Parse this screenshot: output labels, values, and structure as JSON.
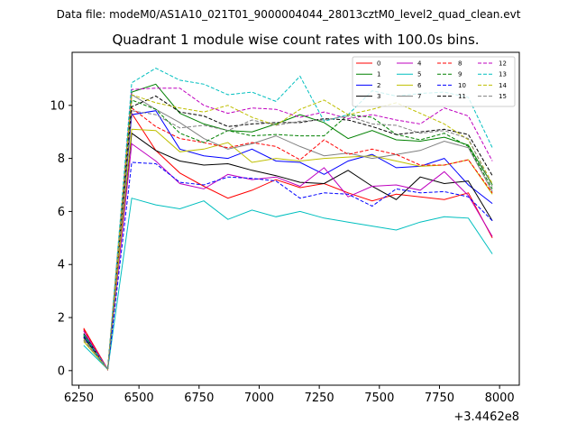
{
  "suptitle": "Data file: modeM0/AS1A10_021T01_9000004044_28013cztM0_level2_quad_clean.evt",
  "chart_data": {
    "type": "line",
    "title": "Quadrant 1 module wise count rates with 100.0s bins.",
    "xlabel": "",
    "ylabel": "",
    "offset_label": "+3.4462e8",
    "xlim": [
      6222,
      8082
    ],
    "ylim": [
      -0.55,
      12.0
    ],
    "x_ticks": [
      6250,
      6500,
      6750,
      7000,
      7250,
      7500,
      7750,
      8000
    ],
    "x_tick_labels": [
      "6250",
      "6500",
      "6750",
      "7000",
      "7250",
      "7500",
      "7750",
      "8000"
    ],
    "y_ticks": [
      0,
      2,
      4,
      6,
      8,
      10
    ],
    "y_tick_labels": [
      "0",
      "2",
      "4",
      "6",
      "8",
      "10"
    ],
    "grid": false,
    "legend_position": "top-right",
    "x": [
      6270,
      6370,
      6470,
      6570,
      6670,
      6770,
      6870,
      6970,
      7070,
      7170,
      7270,
      7370,
      7470,
      7570,
      7670,
      7770,
      7870,
      7970
    ],
    "series": [
      {
        "name": "0",
        "color": "#ff0000",
        "dash": "solid",
        "values": [
          1.6,
          0.05,
          9.7,
          8.3,
          7.45,
          6.95,
          6.5,
          6.8,
          7.2,
          6.9,
          7.05,
          6.7,
          6.4,
          6.65,
          6.55,
          6.45,
          6.7,
          5.0
        ]
      },
      {
        "name": "1",
        "color": "#008000",
        "dash": "solid",
        "values": [
          1.3,
          0.05,
          10.5,
          10.8,
          9.7,
          9.3,
          9.05,
          9.0,
          9.3,
          9.65,
          9.35,
          8.75,
          9.05,
          8.7,
          8.65,
          8.8,
          8.5,
          7.0
        ]
      },
      {
        "name": "2",
        "color": "#0000ff",
        "dash": "solid",
        "values": [
          1.25,
          0.05,
          9.65,
          9.8,
          8.35,
          8.1,
          8.0,
          8.35,
          7.9,
          7.85,
          7.4,
          7.9,
          8.15,
          7.65,
          7.7,
          8.0,
          7.0,
          6.3
        ]
      },
      {
        "name": "3",
        "color": "#000000",
        "dash": "solid",
        "values": [
          1.4,
          0.05,
          8.95,
          8.3,
          7.9,
          7.75,
          7.8,
          7.55,
          7.35,
          7.1,
          7.05,
          7.55,
          6.95,
          6.45,
          7.3,
          7.05,
          7.15,
          5.65
        ]
      },
      {
        "name": "4",
        "color": "#bf00bf",
        "dash": "solid",
        "values": [
          1.5,
          0.05,
          8.55,
          7.9,
          7.05,
          6.85,
          7.4,
          7.2,
          7.3,
          6.95,
          7.65,
          6.55,
          6.95,
          7.0,
          6.8,
          7.5,
          6.6,
          5.05
        ]
      },
      {
        "name": "5",
        "color": "#00bfbf",
        "dash": "solid",
        "values": [
          0.95,
          0.05,
          6.5,
          6.25,
          6.1,
          6.4,
          5.7,
          6.05,
          5.8,
          6.0,
          5.75,
          5.6,
          5.45,
          5.3,
          5.6,
          5.8,
          5.75,
          4.4
        ]
      },
      {
        "name": "6",
        "color": "#bfbf00",
        "dash": "solid",
        "values": [
          1.1,
          0.05,
          9.1,
          9.05,
          8.25,
          8.35,
          8.6,
          7.85,
          8.0,
          7.9,
          8.0,
          8.05,
          8.1,
          7.9,
          7.7,
          7.75,
          7.95,
          6.65
        ]
      },
      {
        "name": "7",
        "color": "#808080",
        "dash": "solid",
        "values": [
          1.2,
          0.05,
          10.4,
          9.85,
          9.35,
          8.75,
          8.35,
          8.55,
          8.85,
          8.45,
          8.1,
          8.2,
          8.0,
          8.15,
          8.3,
          8.65,
          8.4,
          6.75
        ]
      },
      {
        "name": "8",
        "color": "#ff0000",
        "dash": "dashed",
        "values": [
          1.55,
          0.05,
          9.9,
          9.2,
          8.75,
          8.6,
          8.4,
          8.6,
          8.45,
          7.95,
          8.7,
          8.15,
          8.35,
          8.15,
          7.75,
          7.75,
          7.95,
          6.7
        ]
      },
      {
        "name": "9",
        "color": "#008000",
        "dash": "dashed",
        "values": [
          1.35,
          0.05,
          10.2,
          9.85,
          8.95,
          8.6,
          9.05,
          8.85,
          8.9,
          8.85,
          8.85,
          9.65,
          9.55,
          8.9,
          8.7,
          8.95,
          8.45,
          6.85
        ]
      },
      {
        "name": "10",
        "color": "#0000ff",
        "dash": "dashed",
        "values": [
          1.25,
          0.05,
          7.85,
          7.8,
          7.1,
          7.0,
          7.3,
          7.25,
          7.15,
          6.5,
          6.7,
          6.65,
          6.2,
          6.85,
          6.7,
          6.75,
          6.55,
          5.65
        ]
      },
      {
        "name": "11",
        "color": "#000000",
        "dash": "dashed",
        "values": [
          1.3,
          0.05,
          9.95,
          10.35,
          9.75,
          9.6,
          9.2,
          9.3,
          9.35,
          9.35,
          9.5,
          9.45,
          9.2,
          8.9,
          9.0,
          9.1,
          8.9,
          7.35
        ]
      },
      {
        "name": "12",
        "color": "#bf00bf",
        "dash": "dashed",
        "values": [
          1.5,
          0.05,
          10.6,
          10.65,
          10.65,
          10.0,
          9.7,
          9.9,
          9.85,
          9.55,
          9.75,
          9.5,
          9.65,
          9.45,
          9.3,
          9.9,
          9.6,
          7.9
        ]
      },
      {
        "name": "13",
        "color": "#00bfbf",
        "dash": "dashed",
        "values": [
          1.35,
          0.05,
          10.85,
          11.4,
          10.95,
          10.8,
          10.4,
          10.5,
          10.15,
          11.1,
          9.4,
          9.65,
          10.55,
          10.35,
          10.45,
          10.5,
          10.3,
          8.4
        ]
      },
      {
        "name": "14",
        "color": "#bfbf00",
        "dash": "dashed",
        "values": [
          1.2,
          0.05,
          10.4,
          10.1,
          9.9,
          9.75,
          10.0,
          9.55,
          9.25,
          9.85,
          10.2,
          9.65,
          9.85,
          10.1,
          9.7,
          9.3,
          8.7,
          7.05
        ]
      },
      {
        "name": "15",
        "color": "#808080",
        "dash": "dashed",
        "values": [
          1.15,
          0.05,
          9.8,
          9.65,
          9.15,
          9.25,
          9.05,
          9.45,
          9.25,
          9.4,
          9.45,
          9.6,
          9.3,
          9.25,
          8.95,
          9.05,
          8.75,
          6.95
        ]
      }
    ]
  }
}
